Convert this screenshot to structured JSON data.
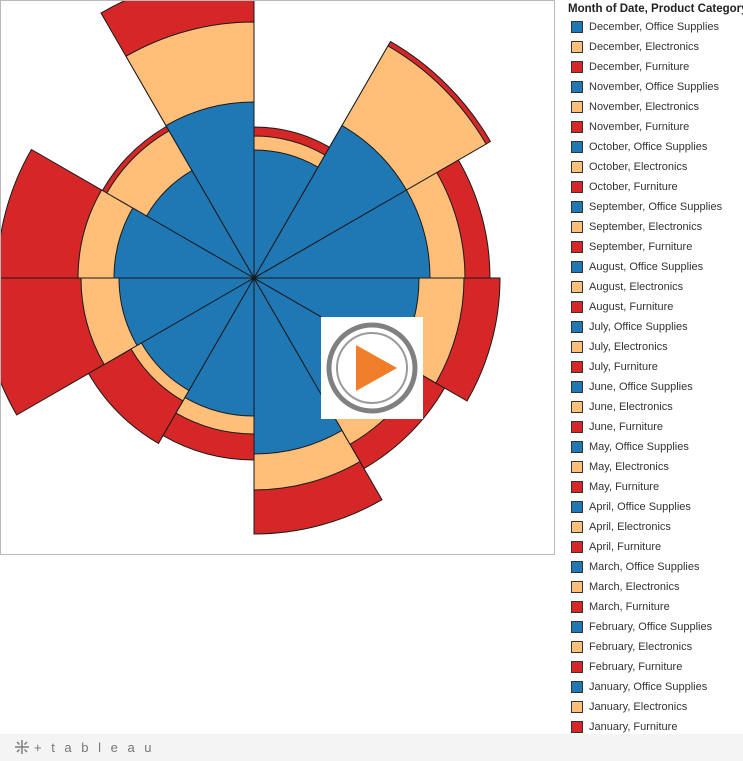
{
  "legend": {
    "title": "Month of Date, Product Category"
  },
  "colors": {
    "office_supplies": "#1f77b4",
    "electronics": "#ffbf79",
    "furniture": "#d62728"
  },
  "footer": {
    "brand": "+ t a b l e a u"
  },
  "overlay": {
    "icon": "play-icon",
    "ring_color": "#808080",
    "triangle_color": "#f07d2a"
  },
  "chart_data": {
    "type": "polar-area-stacked",
    "title": "",
    "stack_order": [
      "Office Supplies",
      "Electronics",
      "Furniture"
    ],
    "months": [
      "January",
      "February",
      "March",
      "April",
      "May",
      "June",
      "July",
      "August",
      "September",
      "October",
      "November",
      "December"
    ],
    "series": [
      {
        "name": "Office Supplies",
        "values": [
          140,
          135,
          130,
          138,
          176,
          160,
          165,
          176,
          176,
          128,
          176,
          124
        ]
      },
      {
        "name": "Electronics",
        "values": [
          36,
          38,
          12,
          18,
          36,
          32,
          45,
          35,
          92,
          14,
          80,
          46
        ]
      },
      {
        "name": "Furniture",
        "values": [
          81,
          101,
          49,
          26,
          44,
          28,
          36,
          25,
          5,
          9,
          50,
          5
        ]
      }
    ]
  },
  "legend_items": [
    {
      "label": "December, Office Supplies",
      "color": "#1f77b4"
    },
    {
      "label": "December, Electronics",
      "color": "#ffbf79"
    },
    {
      "label": "December, Furniture",
      "color": "#d62728"
    },
    {
      "label": "November, Office Supplies",
      "color": "#1f77b4"
    },
    {
      "label": "November, Electronics",
      "color": "#ffbf79"
    },
    {
      "label": "November, Furniture",
      "color": "#d62728"
    },
    {
      "label": "October, Office Supplies",
      "color": "#1f77b4"
    },
    {
      "label": "October, Electronics",
      "color": "#ffbf79"
    },
    {
      "label": "October, Furniture",
      "color": "#d62728"
    },
    {
      "label": "September, Office Supplies",
      "color": "#1f77b4"
    },
    {
      "label": "September, Electronics",
      "color": "#ffbf79"
    },
    {
      "label": "September, Furniture",
      "color": "#d62728"
    },
    {
      "label": "August, Office Supplies",
      "color": "#1f77b4"
    },
    {
      "label": "August, Electronics",
      "color": "#ffbf79"
    },
    {
      "label": "August, Furniture",
      "color": "#d62728"
    },
    {
      "label": "July, Office Supplies",
      "color": "#1f77b4"
    },
    {
      "label": "July, Electronics",
      "color": "#ffbf79"
    },
    {
      "label": "July, Furniture",
      "color": "#d62728"
    },
    {
      "label": "June, Office Supplies",
      "color": "#1f77b4"
    },
    {
      "label": "June, Electronics",
      "color": "#ffbf79"
    },
    {
      "label": "June, Furniture",
      "color": "#d62728"
    },
    {
      "label": "May, Office Supplies",
      "color": "#1f77b4"
    },
    {
      "label": "May, Electronics",
      "color": "#ffbf79"
    },
    {
      "label": "May, Furniture",
      "color": "#d62728"
    },
    {
      "label": "April, Office Supplies",
      "color": "#1f77b4"
    },
    {
      "label": "April, Electronics",
      "color": "#ffbf79"
    },
    {
      "label": "April, Furniture",
      "color": "#d62728"
    },
    {
      "label": "March, Office Supplies",
      "color": "#1f77b4"
    },
    {
      "label": "March, Electronics",
      "color": "#ffbf79"
    },
    {
      "label": "March, Furniture",
      "color": "#d62728"
    },
    {
      "label": "February, Office Supplies",
      "color": "#1f77b4"
    },
    {
      "label": "February, Electronics",
      "color": "#ffbf79"
    },
    {
      "label": "February, Furniture",
      "color": "#d62728"
    },
    {
      "label": "January, Office Supplies",
      "color": "#1f77b4"
    },
    {
      "label": "January, Electronics",
      "color": "#ffbf79"
    },
    {
      "label": "January, Furniture",
      "color": "#d62728"
    }
  ]
}
